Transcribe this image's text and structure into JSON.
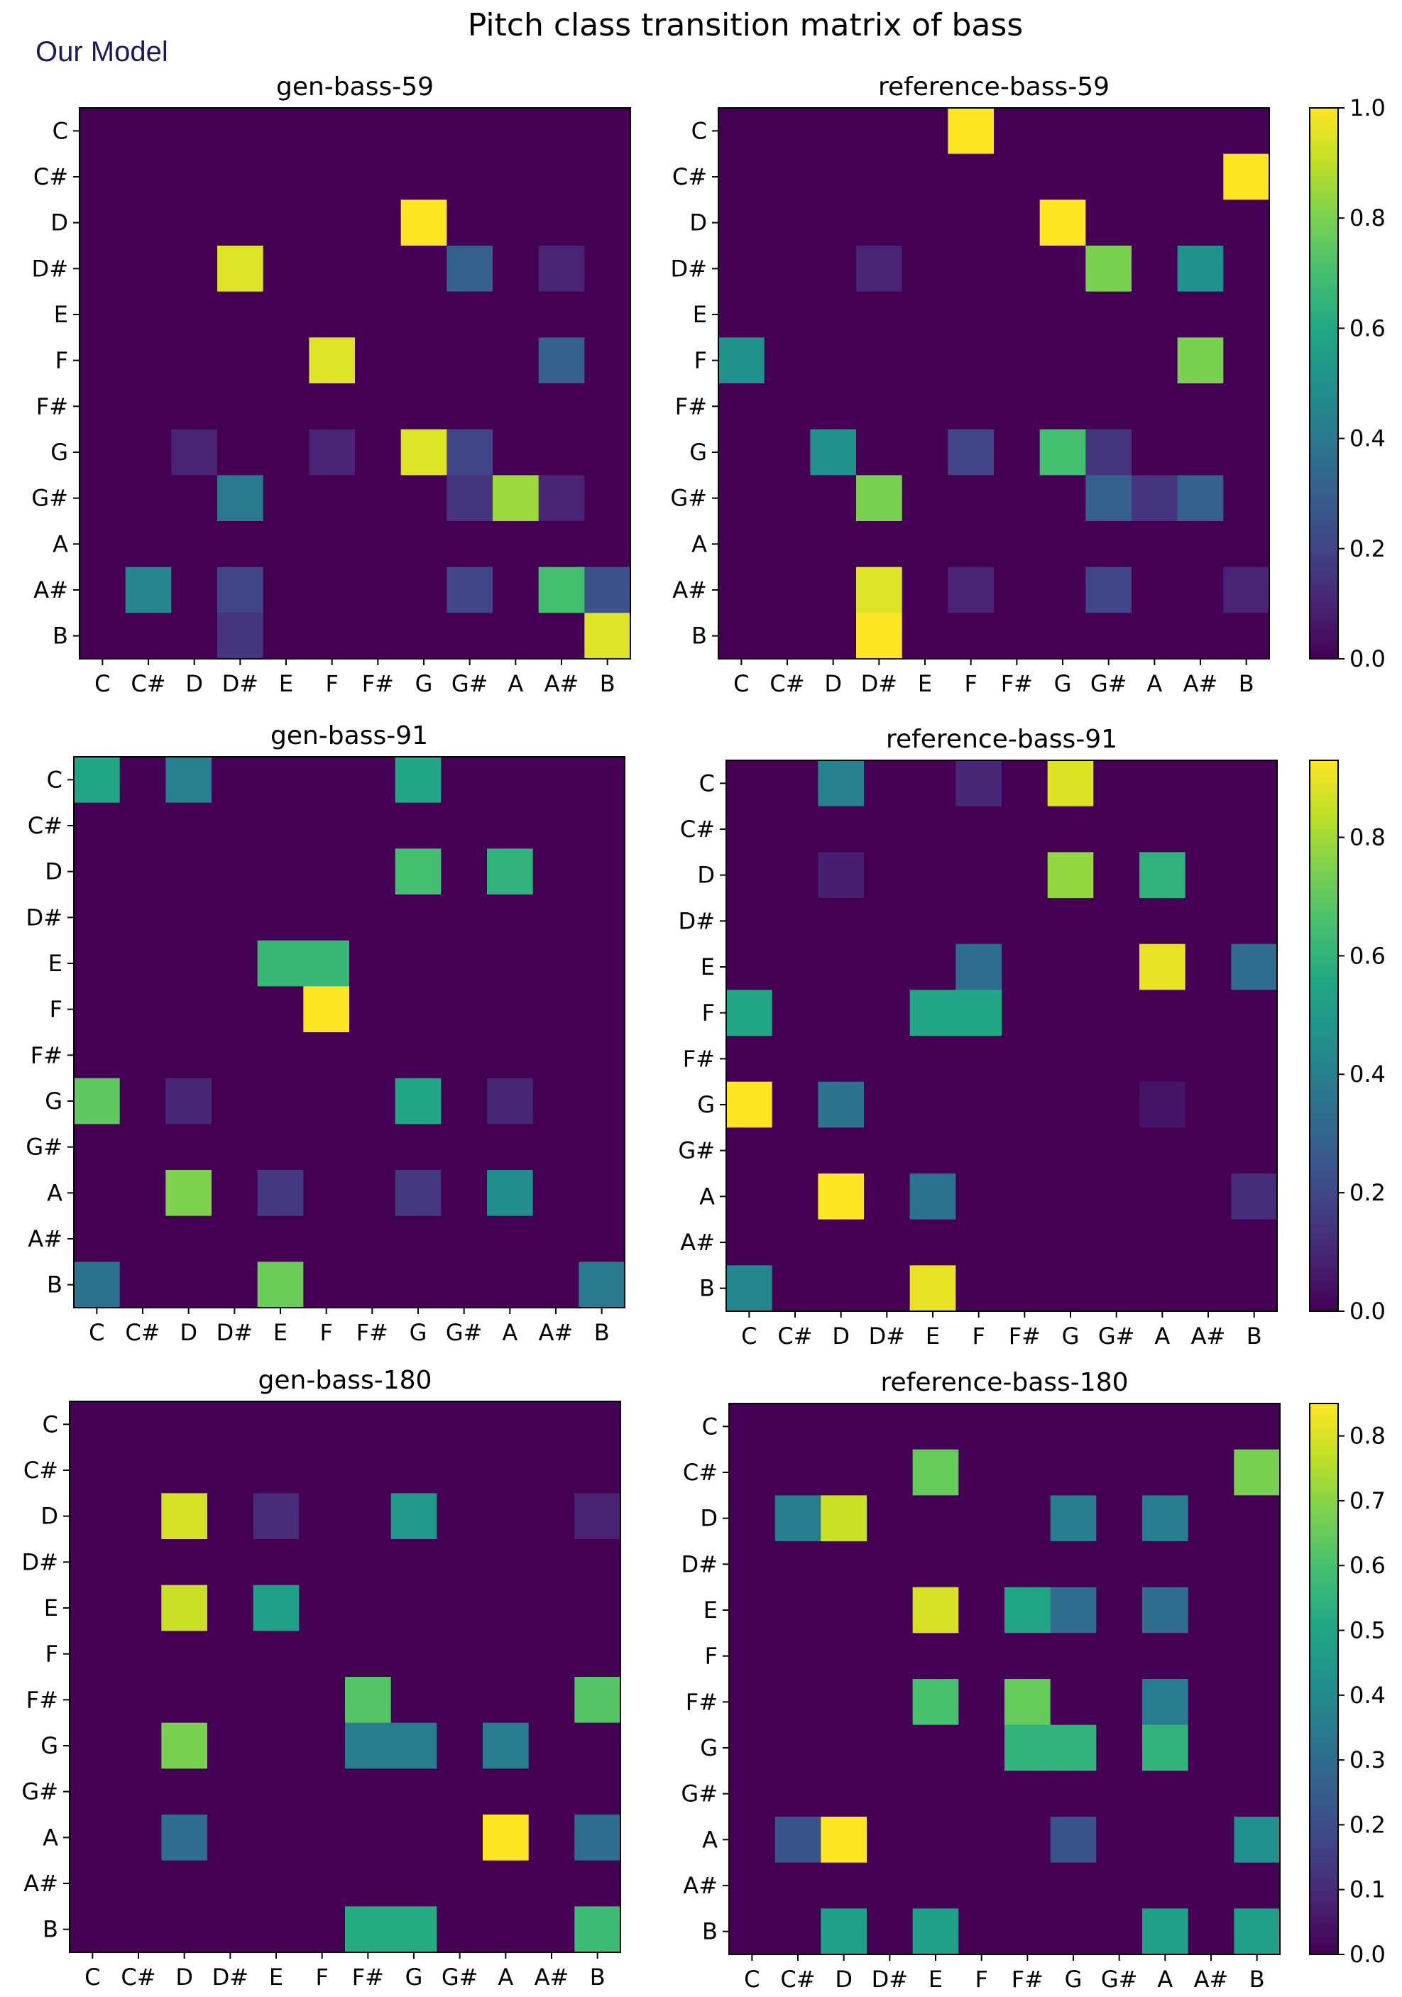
{
  "figure": {
    "title": "Pitch class transition matrix of bass",
    "label": "Our Model"
  },
  "colors": {
    "viridis": [
      "#440154",
      "#482475",
      "#414487",
      "#355f8d",
      "#2a788e",
      "#21918c",
      "#22a884",
      "#44bf70",
      "#7ad151",
      "#bddf26",
      "#fde725"
    ]
  },
  "chart_data": [
    {
      "type": "heatmap",
      "title": "gen-bass-59",
      "categories": [
        "C",
        "C#",
        "D",
        "D#",
        "E",
        "F",
        "F#",
        "G",
        "G#",
        "A",
        "A#",
        "B"
      ],
      "vmax": 1.0,
      "values": [
        [
          0,
          0,
          0,
          0,
          0,
          0,
          0,
          0,
          0,
          0,
          0,
          0
        ],
        [
          0,
          0,
          0,
          0,
          0,
          0,
          0,
          0,
          0,
          0,
          0,
          0
        ],
        [
          0,
          0,
          0,
          0,
          0,
          0,
          0,
          1.0,
          0,
          0,
          0,
          0
        ],
        [
          0,
          0,
          0,
          0.95,
          0,
          0,
          0,
          0,
          0.3,
          0,
          0.1,
          0
        ],
        [
          0,
          0,
          0,
          0,
          0,
          0,
          0,
          0,
          0,
          0,
          0,
          0
        ],
        [
          0,
          0,
          0,
          0,
          0,
          0.95,
          0,
          0,
          0,
          0,
          0.3,
          0
        ],
        [
          0,
          0,
          0,
          0,
          0,
          0,
          0,
          0,
          0,
          0,
          0,
          0
        ],
        [
          0,
          0,
          0.1,
          0,
          0,
          0.1,
          0,
          0.95,
          0.2,
          0,
          0,
          0
        ],
        [
          0,
          0,
          0,
          0.4,
          0,
          0,
          0,
          0,
          0.15,
          0.85,
          0.1,
          0
        ],
        [
          0,
          0,
          0,
          0,
          0,
          0,
          0,
          0,
          0,
          0,
          0,
          0
        ],
        [
          0,
          0.45,
          0,
          0.2,
          0,
          0,
          0,
          0,
          0.2,
          0,
          0.7,
          0.25
        ],
        [
          0,
          0,
          0,
          0.15,
          0,
          0,
          0,
          0,
          0,
          0,
          0,
          0.95
        ]
      ],
      "colorbar": false
    },
    {
      "type": "heatmap",
      "title": "reference-bass-59",
      "categories": [
        "C",
        "C#",
        "D",
        "D#",
        "E",
        "F",
        "F#",
        "G",
        "G#",
        "A",
        "A#",
        "B"
      ],
      "vmax": 1.0,
      "values": [
        [
          0,
          0,
          0,
          0,
          0,
          1.0,
          0,
          0,
          0,
          0,
          0,
          0
        ],
        [
          0,
          0,
          0,
          0,
          0,
          0,
          0,
          0,
          0,
          0,
          0,
          1.0
        ],
        [
          0,
          0,
          0,
          0,
          0,
          0,
          0,
          1.0,
          0,
          0,
          0,
          0
        ],
        [
          0,
          0,
          0,
          0.1,
          0,
          0,
          0,
          0,
          0.8,
          0,
          0.5,
          0
        ],
        [
          0,
          0,
          0,
          0,
          0,
          0,
          0,
          0,
          0,
          0,
          0,
          0
        ],
        [
          0.5,
          0,
          0,
          0,
          0,
          0,
          0,
          0,
          0,
          0,
          0.8,
          0
        ],
        [
          0,
          0,
          0,
          0,
          0,
          0,
          0,
          0,
          0,
          0,
          0,
          0
        ],
        [
          0,
          0,
          0.5,
          0,
          0,
          0.2,
          0,
          0.7,
          0.15,
          0,
          0,
          0
        ],
        [
          0,
          0,
          0,
          0.8,
          0,
          0,
          0,
          0,
          0.3,
          0.15,
          0.3,
          0
        ],
        [
          0,
          0,
          0,
          0,
          0,
          0,
          0,
          0,
          0,
          0,
          0,
          0
        ],
        [
          0,
          0,
          0,
          0.95,
          0,
          0.1,
          0,
          0,
          0.2,
          0,
          0,
          0.1
        ],
        [
          0,
          0,
          0,
          1.0,
          0,
          0,
          0,
          0,
          0,
          0,
          0,
          0
        ]
      ],
      "colorbar": true,
      "colorbar_ticks": [
        "0.0",
        "0.2",
        "0.4",
        "0.6",
        "0.8",
        "1.0"
      ]
    },
    {
      "type": "heatmap",
      "title": "gen-bass-91",
      "categories": [
        "C",
        "C#",
        "D",
        "D#",
        "E",
        "F",
        "F#",
        "G",
        "G#",
        "A",
        "A#",
        "B"
      ],
      "vmax": 0.93,
      "values": [
        [
          0.55,
          0,
          0.4,
          0,
          0,
          0,
          0,
          0.55,
          0,
          0,
          0,
          0
        ],
        [
          0,
          0,
          0,
          0,
          0,
          0,
          0,
          0,
          0,
          0,
          0,
          0
        ],
        [
          0,
          0,
          0,
          0,
          0,
          0,
          0,
          0.65,
          0,
          0.6,
          0,
          0
        ],
        [
          0,
          0,
          0,
          0,
          0,
          0,
          0,
          0,
          0,
          0,
          0,
          0
        ],
        [
          0,
          0,
          0,
          0,
          0.62,
          0.62,
          0,
          0,
          0,
          0,
          0,
          0
        ],
        [
          0,
          0,
          0,
          0,
          0,
          0.93,
          0,
          0,
          0,
          0,
          0,
          0
        ],
        [
          0,
          0,
          0,
          0,
          0,
          0,
          0,
          0,
          0,
          0,
          0,
          0
        ],
        [
          0.7,
          0,
          0.1,
          0,
          0,
          0,
          0,
          0.55,
          0,
          0.1,
          0,
          0
        ],
        [
          0,
          0,
          0,
          0,
          0,
          0,
          0,
          0,
          0,
          0,
          0,
          0
        ],
        [
          0,
          0,
          0.75,
          0,
          0.15,
          0,
          0,
          0.15,
          0,
          0.45,
          0,
          0
        ],
        [
          0,
          0,
          0,
          0,
          0,
          0,
          0,
          0,
          0,
          0,
          0,
          0
        ],
        [
          0.35,
          0,
          0,
          0,
          0.72,
          0,
          0,
          0,
          0,
          0,
          0,
          0.38
        ]
      ],
      "colorbar": false
    },
    {
      "type": "heatmap",
      "title": "reference-bass-91",
      "categories": [
        "C",
        "C#",
        "D",
        "D#",
        "E",
        "F",
        "F#",
        "G",
        "G#",
        "A",
        "A#",
        "B"
      ],
      "vmax": 0.93,
      "values": [
        [
          0,
          0,
          0.4,
          0,
          0,
          0.1,
          0,
          0.88,
          0,
          0,
          0,
          0
        ],
        [
          0,
          0,
          0,
          0,
          0,
          0,
          0,
          0,
          0,
          0,
          0,
          0
        ],
        [
          0,
          0,
          0.08,
          0,
          0,
          0,
          0,
          0.78,
          0,
          0.6,
          0,
          0
        ],
        [
          0,
          0,
          0,
          0,
          0,
          0,
          0,
          0,
          0,
          0,
          0,
          0
        ],
        [
          0,
          0,
          0,
          0,
          0,
          0.33,
          0,
          0,
          0,
          0.9,
          0,
          0.33
        ],
        [
          0.55,
          0,
          0,
          0,
          0.55,
          0.55,
          0,
          0,
          0,
          0,
          0,
          0
        ],
        [
          0,
          0,
          0,
          0,
          0,
          0,
          0,
          0,
          0,
          0,
          0,
          0
        ],
        [
          0.93,
          0,
          0.35,
          0,
          0,
          0,
          0,
          0,
          0,
          0.05,
          0,
          0
        ],
        [
          0,
          0,
          0,
          0,
          0,
          0,
          0,
          0,
          0,
          0,
          0,
          0
        ],
        [
          0,
          0,
          0.93,
          0,
          0.35,
          0,
          0,
          0,
          0,
          0,
          0,
          0.12
        ],
        [
          0,
          0,
          0,
          0,
          0,
          0,
          0,
          0,
          0,
          0,
          0,
          0
        ],
        [
          0.42,
          0,
          0,
          0,
          0.9,
          0,
          0,
          0,
          0,
          0,
          0,
          0
        ]
      ],
      "colorbar": true,
      "colorbar_ticks": [
        "0.0",
        "0.2",
        "0.4",
        "0.6",
        "0.8"
      ]
    },
    {
      "type": "heatmap",
      "title": "gen-bass-180",
      "categories": [
        "C",
        "C#",
        "D",
        "D#",
        "E",
        "F",
        "F#",
        "G",
        "G#",
        "A",
        "A#",
        "B"
      ],
      "vmax": 0.85,
      "values": [
        [
          0,
          0,
          0,
          0,
          0,
          0,
          0,
          0,
          0,
          0,
          0,
          0
        ],
        [
          0,
          0,
          0,
          0,
          0,
          0,
          0,
          0,
          0,
          0,
          0,
          0
        ],
        [
          0,
          0,
          0.8,
          0,
          0.1,
          0,
          0,
          0.45,
          0,
          0,
          0,
          0.08
        ],
        [
          0,
          0,
          0,
          0,
          0,
          0,
          0,
          0,
          0,
          0,
          0,
          0
        ],
        [
          0,
          0,
          0.78,
          0,
          0.48,
          0,
          0,
          0,
          0,
          0,
          0,
          0
        ],
        [
          0,
          0,
          0,
          0,
          0,
          0,
          0,
          0,
          0,
          0,
          0,
          0
        ],
        [
          0,
          0,
          0,
          0,
          0,
          0,
          0.62,
          0,
          0,
          0,
          0,
          0.62
        ],
        [
          0,
          0,
          0.68,
          0,
          0,
          0,
          0.35,
          0.35,
          0,
          0.35,
          0,
          0
        ],
        [
          0,
          0,
          0,
          0,
          0,
          0,
          0,
          0,
          0,
          0,
          0,
          0
        ],
        [
          0,
          0,
          0.3,
          0,
          0,
          0,
          0,
          0,
          0,
          0.85,
          0,
          0.3
        ],
        [
          0,
          0,
          0,
          0,
          0,
          0,
          0,
          0,
          0,
          0,
          0,
          0
        ],
        [
          0,
          0,
          0,
          0,
          0,
          0,
          0.52,
          0.52,
          0,
          0,
          0,
          0.58
        ]
      ],
      "colorbar": false
    },
    {
      "type": "heatmap",
      "title": "reference-bass-180",
      "categories": [
        "C",
        "C#",
        "D",
        "D#",
        "E",
        "F",
        "F#",
        "G",
        "G#",
        "A",
        "A#",
        "B"
      ],
      "vmax": 0.85,
      "values": [
        [
          0,
          0,
          0,
          0,
          0,
          0,
          0,
          0,
          0,
          0,
          0,
          0
        ],
        [
          0,
          0,
          0,
          0,
          0.65,
          0,
          0,
          0,
          0,
          0,
          0,
          0.68
        ],
        [
          0,
          0.35,
          0.78,
          0,
          0,
          0,
          0,
          0.35,
          0,
          0.35,
          0,
          0
        ],
        [
          0,
          0,
          0,
          0,
          0,
          0,
          0,
          0,
          0,
          0,
          0,
          0
        ],
        [
          0,
          0,
          0,
          0,
          0.8,
          0,
          0.5,
          0.3,
          0,
          0.3,
          0,
          0
        ],
        [
          0,
          0,
          0,
          0,
          0,
          0,
          0,
          0,
          0,
          0,
          0,
          0
        ],
        [
          0,
          0,
          0,
          0,
          0.6,
          0,
          0.65,
          0,
          0,
          0.35,
          0,
          0
        ],
        [
          0,
          0,
          0,
          0,
          0,
          0,
          0.55,
          0.55,
          0,
          0.55,
          0,
          0
        ],
        [
          0,
          0,
          0,
          0,
          0,
          0,
          0,
          0,
          0,
          0,
          0,
          0
        ],
        [
          0,
          0.22,
          0.85,
          0,
          0,
          0,
          0,
          0.22,
          0,
          0,
          0,
          0.42
        ],
        [
          0,
          0,
          0,
          0,
          0,
          0,
          0,
          0,
          0,
          0,
          0,
          0
        ],
        [
          0,
          0,
          0.48,
          0,
          0.48,
          0,
          0,
          0,
          0,
          0.48,
          0,
          0.48
        ]
      ],
      "colorbar": true,
      "colorbar_ticks": [
        "0.0",
        "0.1",
        "0.2",
        "0.3",
        "0.4",
        "0.5",
        "0.6",
        "0.7",
        "0.8"
      ]
    }
  ]
}
